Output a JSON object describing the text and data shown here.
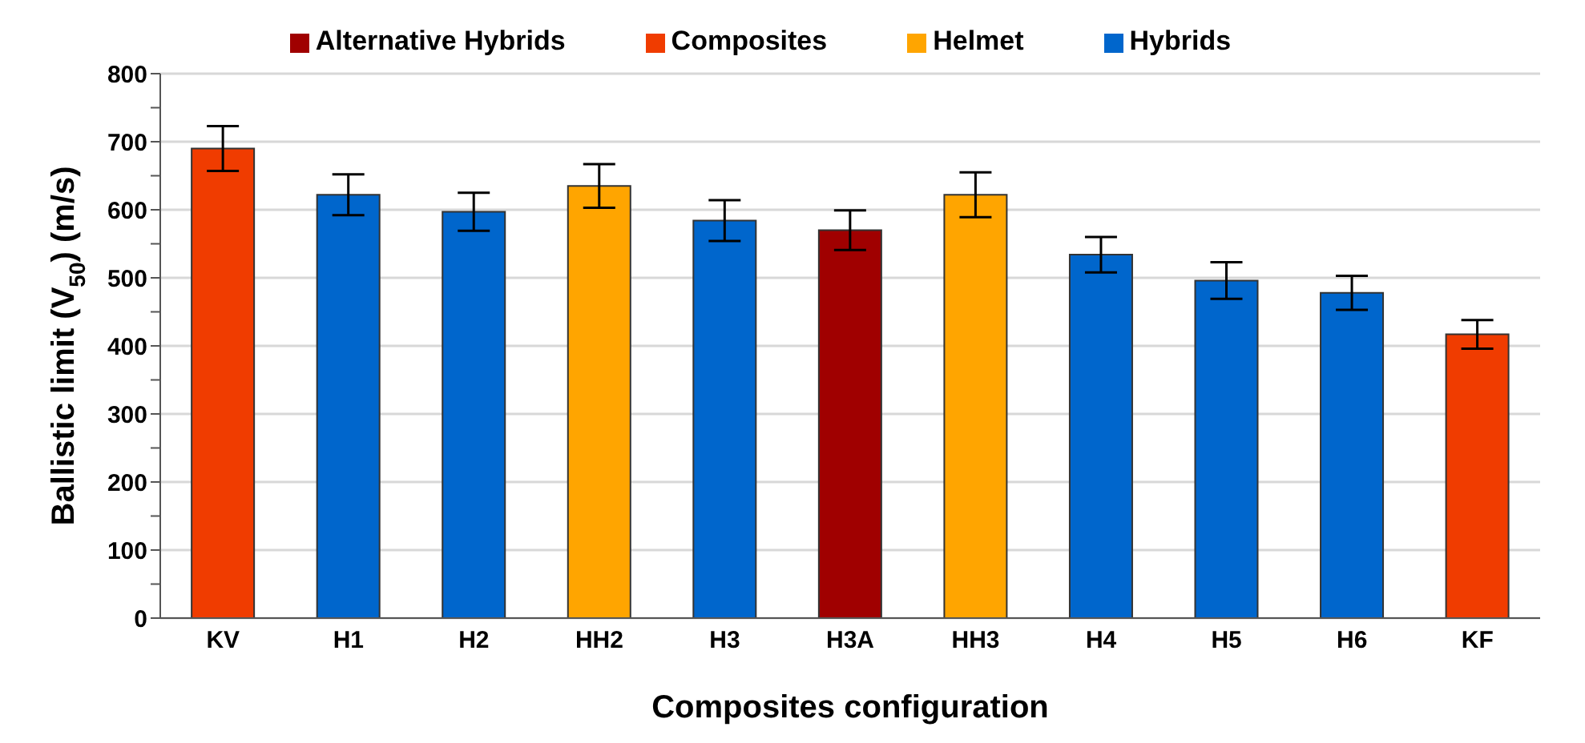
{
  "chart_data": {
    "type": "bar",
    "xlabel": "Composites configuration",
    "ylabel": "Ballistic limit (V$_{50}$) (m/s)",
    "categories": [
      "KV",
      "H1",
      "H2",
      "HH2",
      "H3",
      "H3A",
      "HH3",
      "H4",
      "H5",
      "H6",
      "KF"
    ],
    "series": [
      {
        "name": "Hybrids",
        "color": "#0066cc",
        "values": [
          null,
          622,
          597,
          null,
          584,
          null,
          null,
          534,
          496,
          478,
          null
        ],
        "errors": [
          null,
          30,
          28,
          null,
          30,
          null,
          null,
          26,
          27,
          25,
          null
        ]
      },
      {
        "name": "Composites",
        "color": "#f03c00",
        "values": [
          690,
          null,
          null,
          null,
          null,
          null,
          null,
          null,
          null,
          null,
          417
        ],
        "errors": [
          33,
          null,
          null,
          null,
          null,
          null,
          null,
          null,
          null,
          null,
          21
        ]
      },
      {
        "name": "Alternative Hybrids",
        "color": "#a00000",
        "values": [
          null,
          null,
          null,
          null,
          null,
          570,
          null,
          null,
          null,
          null,
          null
        ],
        "errors": [
          null,
          null,
          null,
          null,
          null,
          29,
          null,
          null,
          null,
          null,
          null
        ]
      },
      {
        "name": "Helmet",
        "color": "#ffa500",
        "values": [
          null,
          null,
          null,
          635,
          null,
          null,
          622,
          null,
          null,
          null,
          null
        ],
        "errors": [
          null,
          null,
          null,
          32,
          null,
          null,
          33,
          null,
          null,
          null,
          null
        ]
      }
    ],
    "stacked": true,
    "ylim": [
      0,
      800
    ],
    "yticks": [
      0,
      {
        "value": 50,
        "label": null
      },
      100,
      {
        "value": 150,
        "label": null
      },
      200,
      {
        "value": 250,
        "label": null
      },
      300,
      {
        "value": 350,
        "label": null
      },
      400,
      {
        "value": 450,
        "label": null
      },
      500,
      {
        "value": 550,
        "label": null
      },
      600,
      {
        "value": 650,
        "label": null
      },
      700,
      {
        "value": 750,
        "label": null
      },
      800
    ],
    "grid": "y",
    "legend": "top"
  }
}
